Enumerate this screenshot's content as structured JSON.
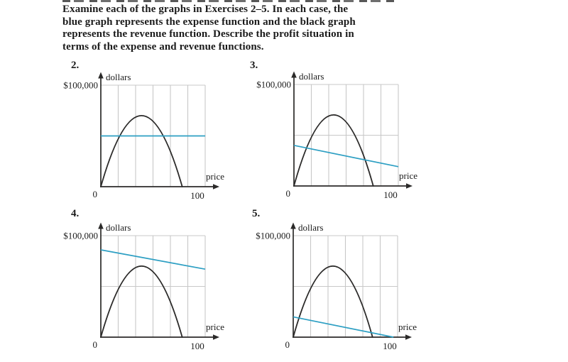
{
  "header": {
    "instructions_lines": [
      "Examine each of the graphs in Exercises 2–5. In each case, the",
      "blue graph represents the expense function and the black graph",
      "represents the revenue function. Describe the profit situation in",
      "terms of the expense and revenue functions."
    ]
  },
  "colors": {
    "expense_blue": "#2d9fc3",
    "revenue_black": "#2b2a29",
    "grid_gray": "#c8c8c8",
    "text_black": "#1c1c1c"
  },
  "chart_data": [
    {
      "exercise_number": "2.",
      "type": "line",
      "x_label": "price",
      "y_label": "dollars",
      "x_range": [
        0,
        100
      ],
      "y_range": [
        0,
        100000
      ],
      "origin_label": "0",
      "x_max_label": "100",
      "y_max_label": "$100,000",
      "grid": {
        "columns": 6,
        "horizontal_lines_at": [
          50000,
          100000
        ]
      },
      "series": [
        {
          "name": "revenue",
          "style": "parabola",
          "color_key": "revenue_black",
          "roots": [
            0,
            78
          ],
          "peak": {
            "x": 39,
            "y": 70000
          }
        },
        {
          "name": "expense",
          "style": "line",
          "color_key": "expense_blue",
          "points": [
            [
              0,
              50000
            ],
            [
              100,
              50000
            ]
          ]
        }
      ]
    },
    {
      "exercise_number": "3.",
      "type": "line",
      "x_label": "price",
      "y_label": "dollars",
      "x_range": [
        0,
        100
      ],
      "y_range": [
        0,
        100000
      ],
      "origin_label": "0",
      "x_max_label": "100",
      "y_max_label": "$100,000",
      "grid": {
        "columns": 6,
        "horizontal_lines_at": [
          50000,
          100000
        ]
      },
      "series": [
        {
          "name": "revenue",
          "style": "parabola",
          "color_key": "revenue_black",
          "roots": [
            0,
            76
          ],
          "peak": {
            "x": 38,
            "y": 70000
          }
        },
        {
          "name": "expense",
          "style": "line",
          "color_key": "expense_blue",
          "points": [
            [
              0,
              40000
            ],
            [
              100,
              19000
            ]
          ]
        }
      ]
    },
    {
      "exercise_number": "4.",
      "type": "line",
      "x_label": "price",
      "y_label": "dollars",
      "x_range": [
        0,
        100
      ],
      "y_range": [
        0,
        100000
      ],
      "origin_label": "0",
      "x_max_label": "100",
      "y_max_label": "$100,000",
      "grid": {
        "columns": 6,
        "horizontal_lines_at": [
          50000,
          100000
        ]
      },
      "series": [
        {
          "name": "revenue",
          "style": "parabola",
          "color_key": "revenue_black",
          "roots": [
            0,
            78
          ],
          "peak": {
            "x": 39,
            "y": 70000
          }
        },
        {
          "name": "expense",
          "style": "line",
          "color_key": "expense_blue",
          "points": [
            [
              0,
              86000
            ],
            [
              100,
              67000
            ]
          ]
        }
      ]
    },
    {
      "exercise_number": "5.",
      "type": "line",
      "x_label": "price",
      "y_label": "dollars",
      "x_range": [
        0,
        100
      ],
      "y_range": [
        0,
        100000
      ],
      "origin_label": "0",
      "x_max_label": "100",
      "y_max_label": "$100,000",
      "grid": {
        "columns": 6,
        "horizontal_lines_at": [
          50000,
          100000
        ]
      },
      "series": [
        {
          "name": "revenue",
          "style": "parabola",
          "color_key": "revenue_black",
          "roots": [
            0,
            76
          ],
          "peak": {
            "x": 38,
            "y": 70000
          }
        },
        {
          "name": "expense",
          "style": "line",
          "color_key": "expense_blue",
          "points": [
            [
              0,
              20000
            ],
            [
              96,
              0
            ]
          ]
        }
      ]
    }
  ]
}
